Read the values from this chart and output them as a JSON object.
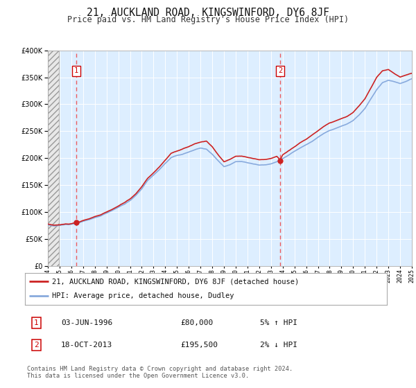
{
  "title": "21, AUCKLAND ROAD, KINGSWINFORD, DY6 8JF",
  "subtitle": "Price paid vs. HM Land Registry's House Price Index (HPI)",
  "title_fontsize": 10.5,
  "subtitle_fontsize": 8.5,
  "background_color": "#ffffff",
  "plot_bg_color": "#ddeeff",
  "sale1_date": "03-JUN-1996",
  "sale1_price": 80000,
  "sale1_pct": "5% ↑ HPI",
  "sale2_date": "18-OCT-2013",
  "sale2_price": 195500,
  "sale2_pct": "2% ↓ HPI",
  "sale1_year": 1996.42,
  "sale2_year": 2013.79,
  "legend_line1": "21, AUCKLAND ROAD, KINGSWINFORD, DY6 8JF (detached house)",
  "legend_line2": "HPI: Average price, detached house, Dudley",
  "footer": "Contains HM Land Registry data © Crown copyright and database right 2024.\nThis data is licensed under the Open Government Licence v3.0.",
  "xmin": 1994,
  "xmax": 2025,
  "ymin": 0,
  "ymax": 400000,
  "hatch_end_year": 1994.92,
  "red_line_color": "#cc2222",
  "blue_line_color": "#88aadd",
  "box_edge_color": "#cc0000"
}
